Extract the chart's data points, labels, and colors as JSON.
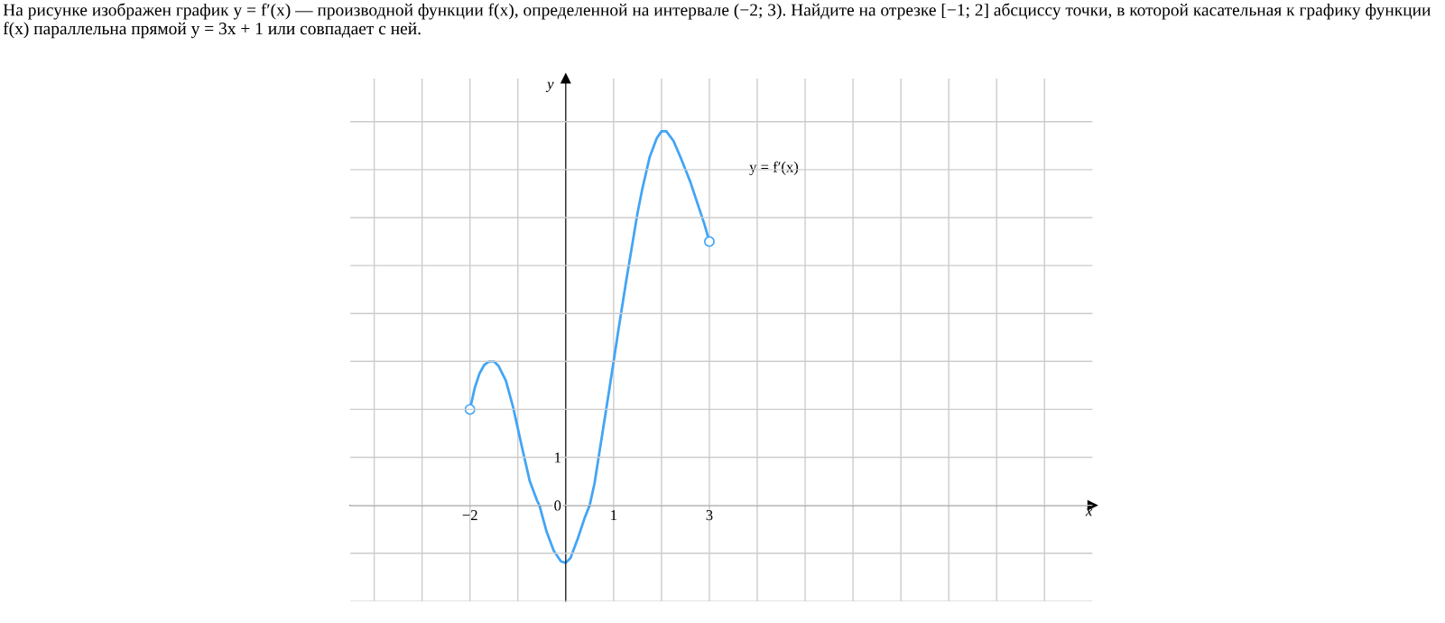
{
  "chart_data": {
    "type": "line",
    "title": "На рисунке изображен график y = f′(x) — производной функции f(x), определенной на интервале (−2; 3). Найдите на отрезке [−1; 2] абсциссу точки, в которой касательная к графику функции f(x) параллельна прямой y = 3x + 1 или совпадает с ней.",
    "xlabel": "x",
    "ylabel": "y",
    "series": [
      {
        "name": "y = f′(x)",
        "color": "#42a5f5",
        "type": "line",
        "marker": "none",
        "x": [
          -2,
          -1.9,
          -1.8,
          -1.7,
          -1.6,
          -1.5,
          -1.4,
          -1.25,
          -1.1,
          -1,
          -0.9,
          -0.75,
          -0.6,
          -0.55,
          -0.4,
          -0.25,
          -0.1,
          0,
          0.1,
          0.25,
          0.4,
          0.5,
          0.6,
          0.75,
          0.9,
          1,
          1.1,
          1.25,
          1.4,
          1.5,
          1.6,
          1.75,
          1.9,
          2,
          2.1,
          2.25,
          2.4,
          2.5,
          2.6,
          2.75,
          2.9,
          3
        ],
        "values": [
          2,
          2.45,
          2.75,
          2.93,
          3.0,
          3.0,
          2.9,
          2.6,
          2.05,
          1.6,
          1.15,
          0.5,
          0.1,
          0,
          -0.55,
          -0.95,
          -1.17,
          -1.2,
          -1.1,
          -0.7,
          -0.25,
          0,
          0.45,
          1.4,
          2.35,
          3,
          3.65,
          4.6,
          5.5,
          6.1,
          6.6,
          7.25,
          7.65,
          7.8,
          7.8,
          7.6,
          7.25,
          7.0,
          6.75,
          6.3,
          5.85,
          5.5
        ]
      },
      {
        "color": "#42a5f5",
        "type": "scatter",
        "marker": "circle",
        "x": [
          -2,
          3
        ],
        "values": [
          2,
          5.5
        ]
      }
    ],
    "xlim": [
      -4.5,
      11
    ],
    "ylim": [
      -2,
      8.9
    ],
    "xticks": [
      {
        "value": -4,
        "label": null
      },
      {
        "value": -3,
        "label": null
      },
      {
        "value": -2,
        "label": "−2"
      },
      {
        "value": -1,
        "label": null
      },
      {
        "value": 0,
        "label": null
      },
      1,
      {
        "value": 2,
        "label": null
      },
      3,
      {
        "value": 4,
        "label": null
      },
      {
        "value": 5,
        "label": null
      },
      {
        "value": 6,
        "label": null
      },
      {
        "value": 7,
        "label": null
      },
      {
        "value": 8,
        "label": null
      },
      {
        "value": 9,
        "label": null
      },
      {
        "value": 10,
        "label": null
      }
    ],
    "yticks": [
      {
        "value": -2,
        "label": null
      },
      {
        "value": -1,
        "label": null
      },
      0,
      1,
      {
        "value": 2,
        "label": null
      },
      {
        "value": 3,
        "label": null
      },
      {
        "value": 4,
        "label": null
      },
      {
        "value": 5,
        "label": null
      },
      {
        "value": 6,
        "label": null
      },
      {
        "value": 7,
        "label": null
      },
      {
        "value": 8,
        "label": null
      }
    ],
    "grid": true
  }
}
